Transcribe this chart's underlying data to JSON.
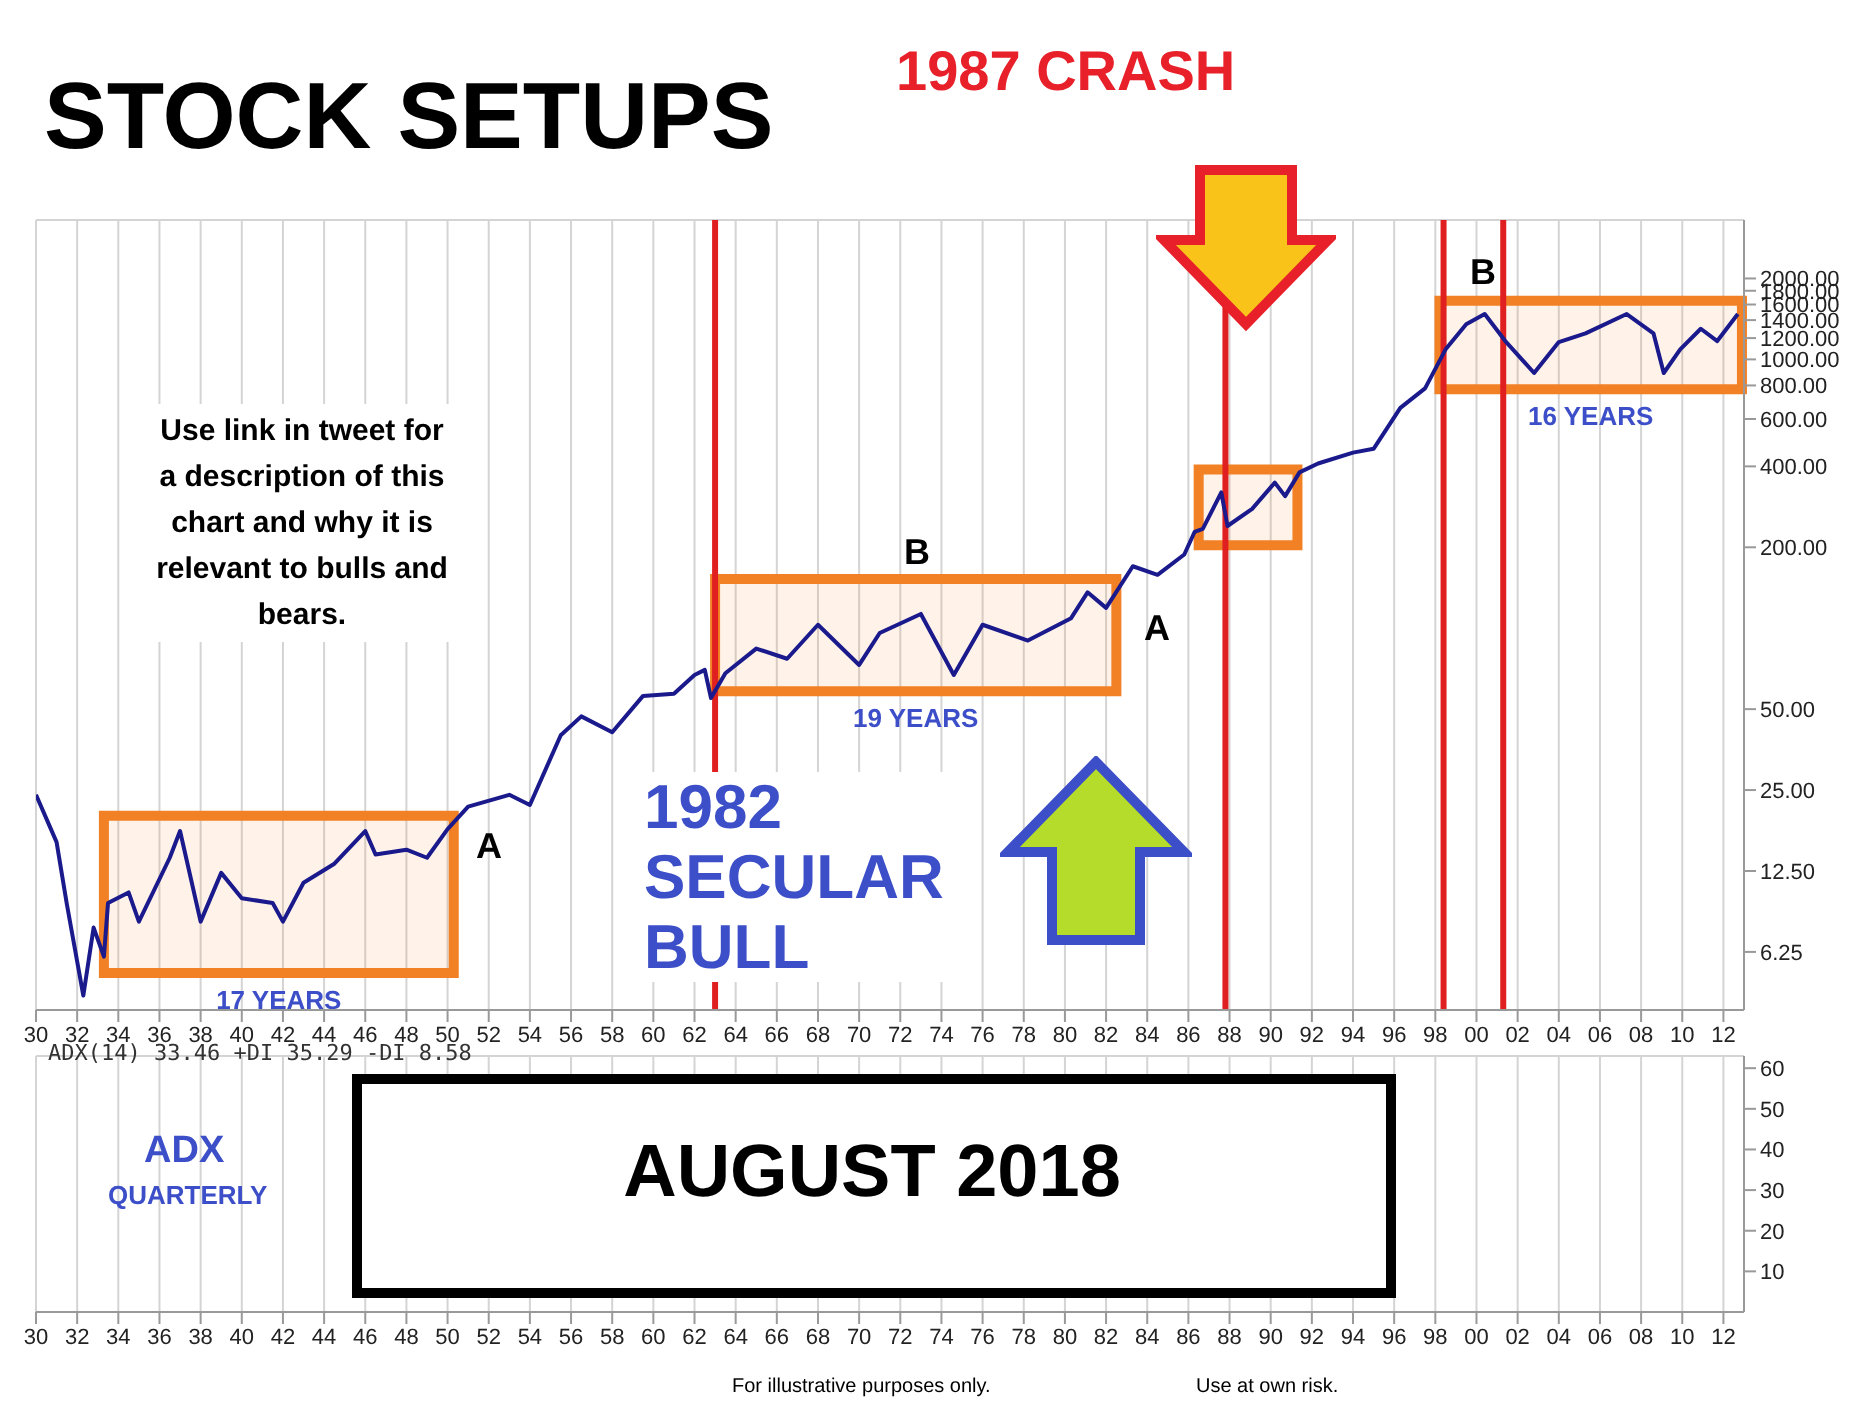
{
  "chart_data": [
    {
      "type": "line",
      "title": "STOCK SETUPS",
      "x": [
        1930,
        1931,
        1931.5,
        1932.3,
        1932.8,
        1933.3,
        1933.5,
        1934.5,
        1935,
        1936.5,
        1937,
        1938,
        1939,
        1940,
        1941.5,
        1942,
        1943,
        1944.5,
        1946,
        1946.5,
        1948,
        1949,
        1950,
        1951,
        1953,
        1954,
        1955.5,
        1956.5,
        1958,
        1959.5,
        1961,
        1962,
        1962.5,
        1962.8,
        1963.5,
        1965,
        1966.5,
        1968,
        1970,
        1971,
        1973,
        1974.6,
        1976,
        1978.2,
        1980.3,
        1981.1,
        1982,
        1983.3,
        1984.5,
        1985.8,
        1986.3,
        1986.7,
        1987.6,
        1987.9,
        1989.1,
        1990.2,
        1990.7,
        1991.4,
        1992.3,
        1994,
        1995,
        1996.3,
        1997.5,
        1998.5,
        1999.5,
        2000.4,
        2001.4,
        2002.8,
        2004,
        2005.3,
        2007.3,
        2008.6,
        2009.1,
        2009.9,
        2010.9,
        2011.7,
        2012.7
      ],
      "series": [
        {
          "color": "#1a1a8c",
          "values": [
            24,
            16,
            9.4,
            4.3,
            7.7,
            6,
            9.5,
            10.4,
            8.1,
            14,
            17.6,
            8.1,
            12.3,
            9.9,
            9.5,
            8.1,
            11.3,
            13.3,
            17.6,
            14.4,
            15,
            14,
            17.9,
            21.7,
            24,
            22,
            40,
            47,
            41,
            56,
            57,
            67,
            70,
            55,
            68,
            84,
            77,
            103,
            73,
            96,
            113,
            67,
            103,
            90,
            109,
            136,
            119,
            170,
            158,
            188,
            228,
            234,
            320,
            240,
            278,
            348,
            310,
            380,
            410,
            450,
            465,
            660,
            780,
            1090,
            1350,
            1475,
            1170,
            890,
            1160,
            1250,
            1475,
            1250,
            890,
            1090,
            1300,
            1170,
            1475
          ]
        }
      ],
      "xlim": [
        1930,
        2013
      ],
      "xticks": [
        {
          "value": 1930,
          "label": "30"
        },
        {
          "value": 1932,
          "label": "32"
        },
        {
          "value": 1934,
          "label": "34"
        },
        {
          "value": 1936,
          "label": "36"
        },
        {
          "value": 1938,
          "label": "38"
        },
        {
          "value": 1940,
          "label": "40"
        },
        {
          "value": 1942,
          "label": "42"
        },
        {
          "value": 1944,
          "label": "44"
        },
        {
          "value": 1946,
          "label": "46"
        },
        {
          "value": 1948,
          "label": "48"
        },
        {
          "value": 1950,
          "label": "50"
        },
        {
          "value": 1952,
          "label": "52"
        },
        {
          "value": 1954,
          "label": "54"
        },
        {
          "value": 1956,
          "label": "56"
        },
        {
          "value": 1958,
          "label": "58"
        },
        {
          "value": 1960,
          "label": "60"
        },
        {
          "value": 1962,
          "label": "62"
        },
        {
          "value": 1964,
          "label": "64"
        },
        {
          "value": 1966,
          "label": "66"
        },
        {
          "value": 1968,
          "label": "68"
        },
        {
          "value": 1970,
          "label": "70"
        },
        {
          "value": 1972,
          "label": "72"
        },
        {
          "value": 1974,
          "label": "74"
        },
        {
          "value": 1976,
          "label": "76"
        },
        {
          "value": 1978,
          "label": "78"
        },
        {
          "value": 1980,
          "label": "80"
        },
        {
          "value": 1982,
          "label": "82"
        },
        {
          "value": 1984,
          "label": "84"
        },
        {
          "value": 1986,
          "label": "86"
        },
        {
          "value": 1988,
          "label": "88"
        },
        {
          "value": 1990,
          "label": "90"
        },
        {
          "value": 1992,
          "label": "92"
        },
        {
          "value": 1994,
          "label": "94"
        },
        {
          "value": 1996,
          "label": "96"
        },
        {
          "value": 1998,
          "label": "98"
        },
        {
          "value": 2000,
          "label": "00"
        },
        {
          "value": 2002,
          "label": "02"
        },
        {
          "value": 2004,
          "label": "04"
        },
        {
          "value": 2006,
          "label": "06"
        },
        {
          "value": 2008,
          "label": "08"
        },
        {
          "value": 2010,
          "label": "10"
        },
        {
          "value": 2012,
          "label": "12"
        }
      ],
      "ylim": [
        3.8,
        3300
      ],
      "log": "y",
      "yticks": [
        {
          "value": 6.25,
          "label": "6.25"
        },
        {
          "value": 12.5,
          "label": "12.50"
        },
        {
          "value": 25,
          "label": "25.00"
        },
        {
          "value": 50,
          "label": "50.00"
        },
        {
          "value": 200,
          "label": "200.00"
        },
        {
          "value": 400,
          "label": "400.00"
        },
        {
          "value": 600,
          "label": "600.00"
        },
        {
          "value": 800,
          "label": "800.00"
        },
        {
          "value": 1000,
          "label": "1000.00"
        },
        {
          "value": 1200,
          "label": "1200.00"
        },
        {
          "value": 1400,
          "label": "1400.00"
        },
        {
          "value": 1600,
          "label": "1600.00"
        },
        {
          "value": 1800,
          "label": "1800.00"
        },
        {
          "value": 2000,
          "label": "2000.00"
        }
      ],
      "grid": true,
      "marker": "none",
      "line_style": "solid",
      "bands": [
        {
          "axis": "x",
          "from": 1933.3,
          "to": 1950.3,
          "label": "17 YEARS",
          "color": "#f28024"
        },
        {
          "axis": "x",
          "from": 1963,
          "to": 1982.5,
          "label": "19 YEARS",
          "color": "#f28024"
        },
        {
          "axis": "x",
          "from": 1986.5,
          "to": 1991.3,
          "label": null,
          "color": "#f28024"
        },
        {
          "axis": "x",
          "from": 1998.2,
          "to": 2012.9,
          "label": "16 YEARS",
          "color": "#f28024"
        }
      ],
      "ref_lines": [
        {
          "axis": "x",
          "value": 1963,
          "label": null,
          "color": "#e02020"
        },
        {
          "axis": "x",
          "value": 1987.8,
          "label": null,
          "color": "#e02020"
        },
        {
          "axis": "x",
          "value": 1998.4,
          "label": null,
          "color": "#e02020"
        },
        {
          "axis": "x",
          "value": 2001.3,
          "label": null,
          "color": "#e02020"
        }
      ],
      "annotations": [
        "1987 CRASH",
        "Use link in tweet for a description of this chart and why it is relevant to bulls and bears.",
        "1982 SECULAR BULL",
        "A",
        "B",
        "A",
        "B"
      ]
    },
    {
      "type": "line",
      "xlim": [
        1930,
        2013
      ],
      "xticks": [
        {
          "value": 1930,
          "label": "30"
        },
        {
          "value": 1932,
          "label": "32"
        },
        {
          "value": 1934,
          "label": "34"
        },
        {
          "value": 1936,
          "label": "36"
        },
        {
          "value": 1938,
          "label": "38"
        },
        {
          "value": 1940,
          "label": "40"
        },
        {
          "value": 1942,
          "label": "42"
        },
        {
          "value": 1944,
          "label": "44"
        },
        {
          "value": 1946,
          "label": "46"
        },
        {
          "value": 1948,
          "label": "48"
        },
        {
          "value": 1950,
          "label": "50"
        },
        {
          "value": 1952,
          "label": "52"
        },
        {
          "value": 1954,
          "label": "54"
        },
        {
          "value": 1956,
          "label": "56"
        },
        {
          "value": 1958,
          "label": "58"
        },
        {
          "value": 1960,
          "label": "60"
        },
        {
          "value": 1962,
          "label": "62"
        },
        {
          "value": 1964,
          "label": "64"
        },
        {
          "value": 1966,
          "label": "66"
        },
        {
          "value": 1968,
          "label": "68"
        },
        {
          "value": 1970,
          "label": "70"
        },
        {
          "value": 1972,
          "label": "72"
        },
        {
          "value": 1974,
          "label": "74"
        },
        {
          "value": 1976,
          "label": "76"
        },
        {
          "value": 1978,
          "label": "78"
        },
        {
          "value": 1980,
          "label": "80"
        },
        {
          "value": 1982,
          "label": "82"
        },
        {
          "value": 1984,
          "label": "84"
        },
        {
          "value": 1986,
          "label": "86"
        },
        {
          "value": 1988,
          "label": "88"
        },
        {
          "value": 1990,
          "label": "90"
        },
        {
          "value": 1992,
          "label": "92"
        },
        {
          "value": 1994,
          "label": "94"
        },
        {
          "value": 1996,
          "label": "96"
        },
        {
          "value": 1998,
          "label": "98"
        },
        {
          "value": 2000,
          "label": "00"
        },
        {
          "value": 2002,
          "label": "02"
        },
        {
          "value": 2004,
          "label": "04"
        },
        {
          "value": 2006,
          "label": "06"
        },
        {
          "value": 2008,
          "label": "08"
        },
        {
          "value": 2010,
          "label": "10"
        },
        {
          "value": 2012,
          "label": "12"
        }
      ],
      "ylim": [
        0,
        63
      ],
      "yticks": [
        10,
        20,
        30,
        40,
        50,
        60
      ],
      "grid": true,
      "annotations": [
        "ADX(14) 33.46 +DI 35.29 -DI 8.58",
        "ADX",
        "QUARTERLY",
        "AUGUST 2018",
        "For illustrative purposes only.",
        "Use at own risk."
      ]
    }
  ]
}
